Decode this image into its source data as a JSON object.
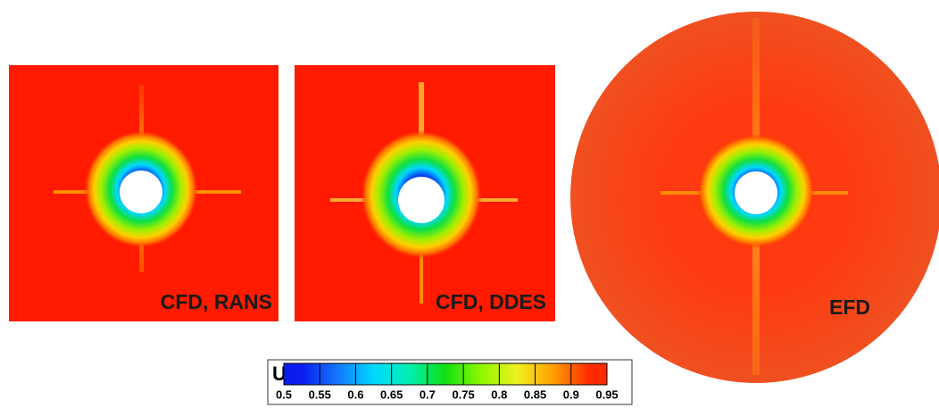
{
  "panels": [
    {
      "label": "CFD, RANS"
    },
    {
      "label": "CFD, DDES"
    },
    {
      "label": "EFD"
    }
  ],
  "colorbar": {
    "title": "U",
    "lim": [
      0.5,
      0.95
    ],
    "ticks": [
      0.5,
      0.55,
      0.6,
      0.65,
      0.7,
      0.75,
      0.8,
      0.85,
      0.9,
      0.95
    ],
    "colors": [
      "#0a1cf0",
      "#1478ff",
      "#00d8ff",
      "#00f0b0",
      "#10e010",
      "#90f800",
      "#f0f020",
      "#ffa000",
      "#ff2a00"
    ]
  }
}
